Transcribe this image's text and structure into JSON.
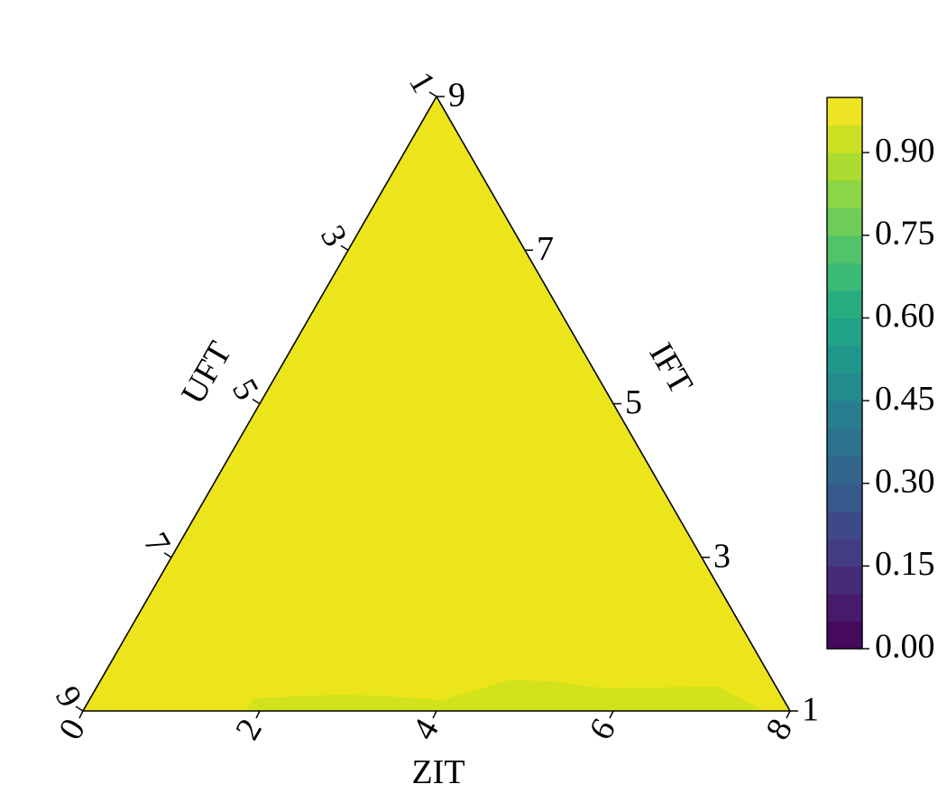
{
  "chart_data": {
    "type": "ternary-contour",
    "axes": {
      "bottom": {
        "label": "ZIT",
        "ticks": [
          "0",
          "2",
          "4",
          "6",
          "8"
        ]
      },
      "left": {
        "label": "UFT",
        "ticks": [
          "1",
          "3",
          "5",
          "7",
          "9"
        ]
      },
      "right": {
        "label": "IFT",
        "ticks": [
          "9",
          "7",
          "5",
          "3",
          "1"
        ]
      }
    },
    "fill_value_range": [
      0.97,
      1.0
    ],
    "secondary_band": {
      "value_range": [
        0.93,
        0.97
      ],
      "location": "along bottom edge"
    },
    "colorbar": {
      "range": [
        0.0,
        1.0
      ],
      "tick_labels": [
        "0.00",
        "0.15",
        "0.30",
        "0.45",
        "0.60",
        "0.75",
        "0.90"
      ],
      "tick_values": [
        0.0,
        0.15,
        0.3,
        0.45,
        0.6,
        0.75,
        0.9
      ],
      "levels": 20,
      "colormap": "viridis"
    },
    "colors": {
      "main_fill": "#ece51b",
      "band_fill": "#d2e21b"
    }
  }
}
